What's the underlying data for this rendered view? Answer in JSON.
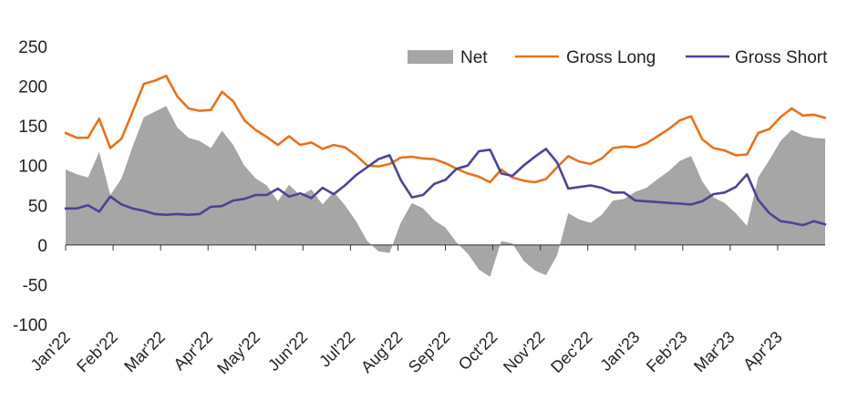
{
  "chart_data": {
    "type": "area",
    "title": "",
    "xlabel": "",
    "ylabel": "",
    "ylim": [
      -100,
      250
    ],
    "yticks": [
      250,
      200,
      150,
      100,
      50,
      0,
      -50,
      -100
    ],
    "x_tick_labels": [
      "Jan'22",
      "Feb'22",
      "Mar'22",
      "Apr'22",
      "May'22",
      "Jun'22",
      "Jul'22",
      "Aug'22",
      "Sep'22",
      "Oct'22",
      "Nov'22",
      "Dec'22",
      "Jan'23",
      "Feb'23",
      "Mar'23",
      "Apr'23"
    ],
    "grid": false,
    "legend_position": "top-right",
    "x_axis": "weekly, Jan 2022 to Apr 2023",
    "series": [
      {
        "name": "Net",
        "kind": "area",
        "color": "#a6a6a6",
        "values": [
          95,
          89,
          85,
          117,
          63,
          84,
          124,
          161,
          168,
          175,
          148,
          135,
          131,
          122,
          144,
          126,
          100,
          84,
          75,
          55,
          76,
          62,
          70,
          51,
          67,
          50,
          30,
          5,
          -8,
          -10,
          28,
          53,
          46,
          31,
          22,
          3,
          -11,
          -31,
          -40,
          5,
          2,
          -20,
          -32,
          -38,
          -13,
          40,
          32,
          28,
          38,
          56,
          58,
          67,
          72,
          83,
          93,
          106,
          112,
          80,
          60,
          53,
          40,
          24,
          85,
          107,
          131,
          145,
          138,
          135,
          134
        ]
      },
      {
        "name": "Gross Long",
        "kind": "line",
        "color": "#e8721c",
        "values": [
          141,
          135,
          135,
          159,
          122,
          134,
          168,
          203,
          207,
          213,
          187,
          172,
          169,
          170,
          193,
          181,
          157,
          145,
          136,
          126,
          137,
          126,
          129,
          121,
          126,
          123,
          113,
          100,
          99,
          102,
          110,
          111,
          109,
          108,
          103,
          96,
          90,
          86,
          79,
          95,
          85,
          81,
          79,
          83,
          98,
          112,
          105,
          102,
          109,
          122,
          124,
          123,
          128,
          137,
          146,
          157,
          162,
          133,
          122,
          119,
          113,
          114,
          141,
          146,
          161,
          172,
          163,
          164,
          160
        ]
      },
      {
        "name": "Gross Short",
        "kind": "line",
        "color": "#4b4494",
        "values": [
          46,
          46,
          50,
          42,
          61,
          51,
          46,
          43,
          39,
          38,
          39,
          38,
          39,
          48,
          49,
          56,
          58,
          63,
          63,
          71,
          61,
          65,
          59,
          72,
          64,
          75,
          88,
          98,
          108,
          113,
          82,
          60,
          63,
          77,
          82,
          96,
          100,
          118,
          120,
          90,
          87,
          100,
          111,
          121,
          104,
          71,
          73,
          75,
          72,
          66,
          66,
          56,
          55,
          54,
          53,
          52,
          51,
          55,
          64,
          66,
          73,
          89,
          57,
          40,
          30,
          28,
          25,
          30,
          26
        ]
      }
    ]
  }
}
